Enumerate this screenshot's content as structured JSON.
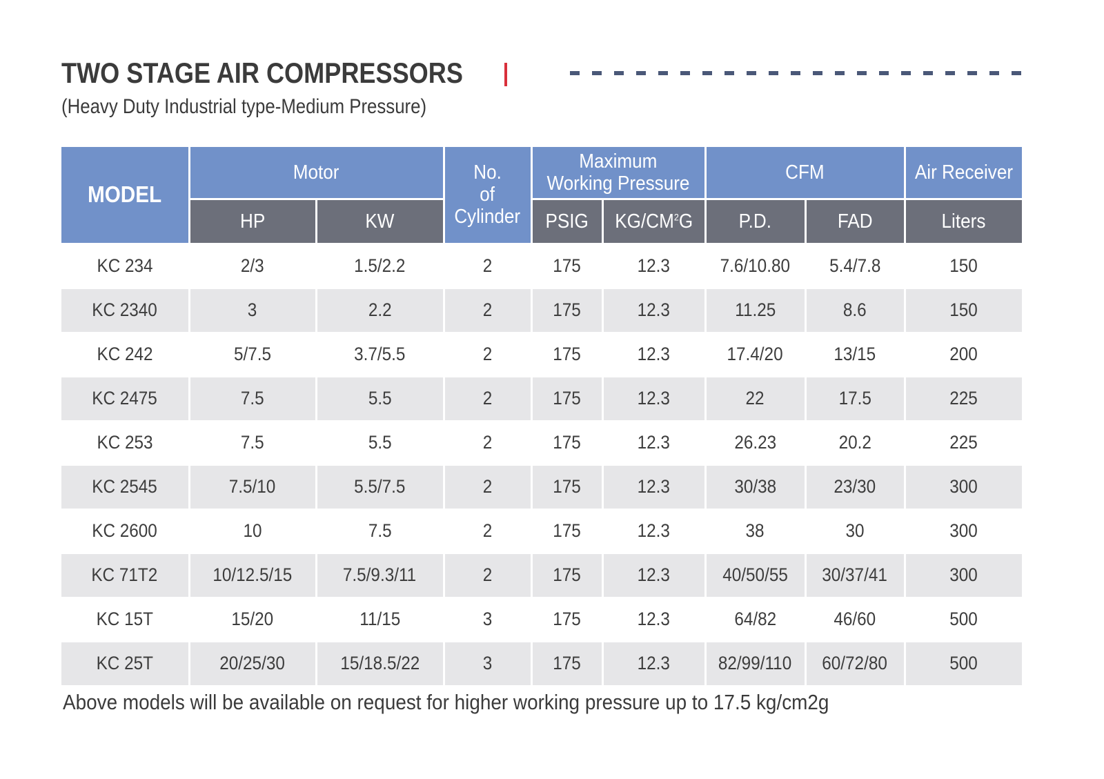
{
  "header": {
    "title": "TWO STAGE AIR COMPRESSORS",
    "subtitle": "(Heavy Duty Industrial type-Medium Pressure)"
  },
  "colors": {
    "header_blue": "#7191c9",
    "header_dark": "#6c6f7a",
    "accent_red": "#d9303b",
    "dash_navy": "#4a5878",
    "row_stripe": "#e6e6e8"
  },
  "table": {
    "group_headers": {
      "model": "MODEL",
      "motor": "Motor",
      "cylinders_line1": "No.",
      "cylinders_line2": "of",
      "cylinders_line3": "Cylinder",
      "pressure_line1": "Maximum",
      "pressure_line2": "Working Pressure",
      "cfm": "CFM",
      "air_receiver": "Air Receiver"
    },
    "sub_headers": {
      "hp": "HP",
      "kw": "KW",
      "psig": "PSIG",
      "kgcm_prefix": "KG/CM",
      "kgcm_sup": "2",
      "kgcm_suffix": "G",
      "pd": "P.D.",
      "fad": "FAD",
      "liters": "Liters"
    },
    "rows": [
      {
        "model": "KC 234",
        "hp": "2/3",
        "kw": "1.5/2.2",
        "cyl": "2",
        "psig": "175",
        "kg": "12.3",
        "pd": "7.6/10.80",
        "fad": "5.4/7.8",
        "liters": "150"
      },
      {
        "model": "KC 2340",
        "hp": "3",
        "kw": "2.2",
        "cyl": "2",
        "psig": "175",
        "kg": "12.3",
        "pd": "11.25",
        "fad": "8.6",
        "liters": "150"
      },
      {
        "model": "KC 242",
        "hp": "5/7.5",
        "kw": "3.7/5.5",
        "cyl": "2",
        "psig": "175",
        "kg": "12.3",
        "pd": "17.4/20",
        "fad": "13/15",
        "liters": "200"
      },
      {
        "model": "KC 2475",
        "hp": "7.5",
        "kw": "5.5",
        "cyl": "2",
        "psig": "175",
        "kg": "12.3",
        "pd": "22",
        "fad": "17.5",
        "liters": "225"
      },
      {
        "model": "KC 253",
        "hp": "7.5",
        "kw": "5.5",
        "cyl": "2",
        "psig": "175",
        "kg": "12.3",
        "pd": "26.23",
        "fad": "20.2",
        "liters": "225"
      },
      {
        "model": "KC 2545",
        "hp": "7.5/10",
        "kw": "5.5/7.5",
        "cyl": "2",
        "psig": "175",
        "kg": "12.3",
        "pd": "30/38",
        "fad": "23/30",
        "liters": "300"
      },
      {
        "model": "KC 2600",
        "hp": "10",
        "kw": "7.5",
        "cyl": "2",
        "psig": "175",
        "kg": "12.3",
        "pd": "38",
        "fad": "30",
        "liters": "300"
      },
      {
        "model": "KC 71T2",
        "hp": "10/12.5/15",
        "kw": "7.5/9.3/11",
        "cyl": "2",
        "psig": "175",
        "kg": "12.3",
        "pd": "40/50/55",
        "fad": "30/37/41",
        "liters": "300"
      },
      {
        "model": "KC 15T",
        "hp": "15/20",
        "kw": "11/15",
        "cyl": "3",
        "psig": "175",
        "kg": "12.3",
        "pd": "64/82",
        "fad": "46/60",
        "liters": "500"
      },
      {
        "model": "KC 25T",
        "hp": "20/25/30",
        "kw": "15/18.5/22",
        "cyl": "3",
        "psig": "175",
        "kg": "12.3",
        "pd": "82/99/110",
        "fad": "60/72/80",
        "liters": "500"
      }
    ]
  },
  "footer": {
    "note": "Above models will be available on request for higher working pressure up to 17.5 kg/cm2g"
  }
}
